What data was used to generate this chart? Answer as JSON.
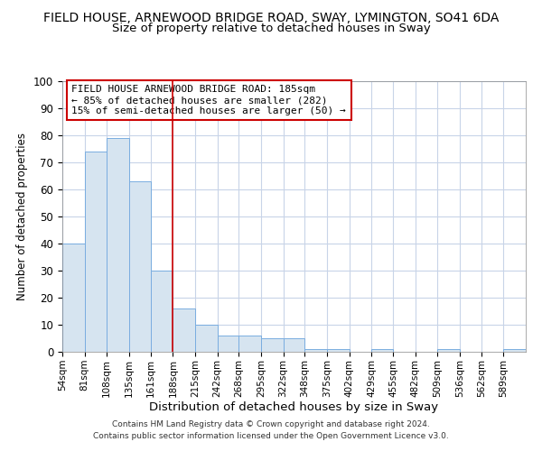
{
  "title1": "FIELD HOUSE, ARNEWOOD BRIDGE ROAD, SWAY, LYMINGTON, SO41 6DA",
  "title2": "Size of property relative to detached houses in Sway",
  "xlabel": "Distribution of detached houses by size in Sway",
  "ylabel": "Number of detached properties",
  "bin_labels": [
    "54sqm",
    "81sqm",
    "108sqm",
    "135sqm",
    "161sqm",
    "188sqm",
    "215sqm",
    "242sqm",
    "268sqm",
    "295sqm",
    "322sqm",
    "348sqm",
    "375sqm",
    "402sqm",
    "429sqm",
    "455sqm",
    "482sqm",
    "509sqm",
    "536sqm",
    "562sqm",
    "589sqm"
  ],
  "bin_edges": [
    54,
    81,
    108,
    135,
    161,
    188,
    215,
    242,
    268,
    295,
    322,
    348,
    375,
    402,
    429,
    455,
    482,
    509,
    536,
    562,
    589,
    616
  ],
  "heights": [
    40,
    74,
    79,
    63,
    30,
    16,
    10,
    6,
    6,
    5,
    5,
    1,
    1,
    0,
    1,
    0,
    0,
    1,
    0,
    0,
    1
  ],
  "bar_color": "#d6e4f0",
  "bar_edge_color": "#7aade0",
  "ref_line_x": 188,
  "ref_line_color": "#cc0000",
  "ylim": [
    0,
    100
  ],
  "yticks": [
    0,
    10,
    20,
    30,
    40,
    50,
    60,
    70,
    80,
    90,
    100
  ],
  "annotation_title": "FIELD HOUSE ARNEWOOD BRIDGE ROAD: 185sqm",
  "annotation_line1": "← 85% of detached houses are smaller (282)",
  "annotation_line2": "15% of semi-detached houses are larger (50) →",
  "annotation_box_color": "#cc0000",
  "footer_line1": "Contains HM Land Registry data © Crown copyright and database right 2024.",
  "footer_line2": "Contains public sector information licensed under the Open Government Licence v3.0.",
  "background_color": "#ffffff",
  "grid_color": "#c8d4e8",
  "title1_fontsize": 10,
  "title2_fontsize": 9.5,
  "xlabel_fontsize": 9.5,
  "ylabel_fontsize": 8.5
}
